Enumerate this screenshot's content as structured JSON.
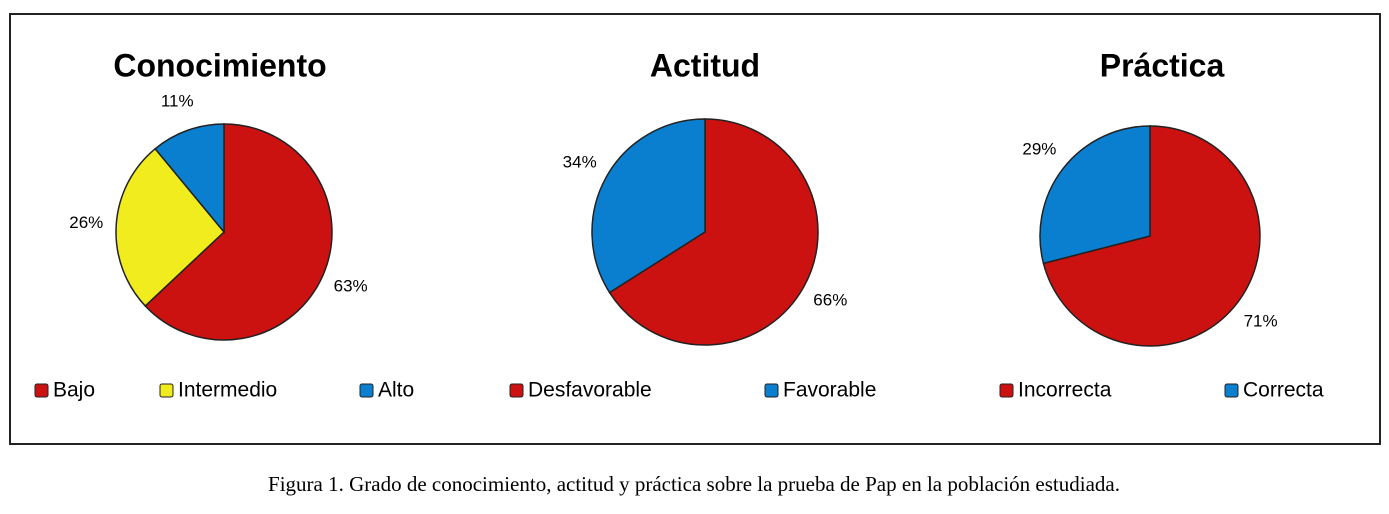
{
  "chart_data": [
    {
      "type": "pie",
      "title": "Conocimiento",
      "categories": [
        "Bajo",
        "Intermedio",
        "Alto"
      ],
      "values": [
        63,
        26,
        11
      ],
      "value_labels": [
        "63%",
        "26%",
        "11%"
      ],
      "colors": [
        "#cc1111",
        "#f0ec1e",
        "#0a7fd0"
      ]
    },
    {
      "type": "pie",
      "title": "Actitud",
      "categories": [
        "Desfavorable",
        "Favorable"
      ],
      "values": [
        66,
        34
      ],
      "value_labels": [
        "66%",
        "34%"
      ],
      "colors": [
        "#cc1111",
        "#0a7fd0"
      ]
    },
    {
      "type": "pie",
      "title": "Práctica",
      "categories": [
        "Incorrecta",
        "Correcta"
      ],
      "values": [
        71,
        29
      ],
      "value_labels": [
        "71%",
        "29%"
      ],
      "colors": [
        "#cc1111",
        "#0a7fd0"
      ]
    }
  ],
  "caption": "Figura 1. Grado de conocimiento, actitud y práctica sobre la prueba de Pap en la población estudiada."
}
